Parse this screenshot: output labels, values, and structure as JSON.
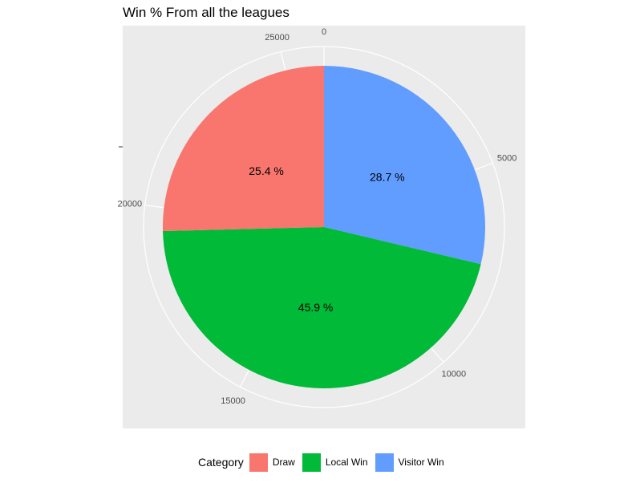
{
  "chart_data": {
    "type": "pie",
    "title": "Win % From all the leagues",
    "total": 26000,
    "categories": [
      "Visitor Win",
      "Local Win",
      "Draw"
    ],
    "values": [
      7462,
      11934,
      6604
    ],
    "labels": [
      "28.7 %",
      "45.9 %",
      "25.4 %"
    ],
    "colors": [
      "#619CFF",
      "#00BA38",
      "#F8766D"
    ],
    "axis_ticks": [
      0,
      5000,
      10000,
      15000,
      20000,
      25000
    ],
    "axis_tick_labels": [
      "0",
      "5000",
      "10000",
      "15000",
      "20000",
      "25000"
    ],
    "panel_background": "#EBEBEB",
    "grid": true,
    "legend": {
      "title": "Category",
      "position": "bottom",
      "items": [
        {
          "label": "Draw",
          "color": "#F8766D"
        },
        {
          "label": "Local Win",
          "color": "#00BA38"
        },
        {
          "label": "Visitor Win",
          "color": "#619CFF"
        }
      ]
    }
  }
}
